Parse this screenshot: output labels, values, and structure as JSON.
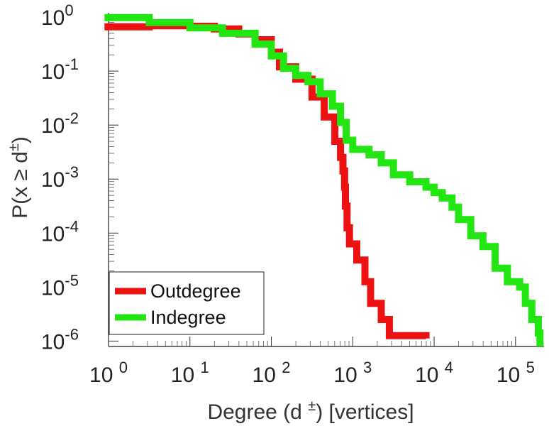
{
  "chart_data": {
    "type": "line",
    "xscale": "log",
    "yscale": "log",
    "xlim_exp": [
      0,
      5.35
    ],
    "ylim_exp": [
      -6.1,
      0.08
    ],
    "xlabel_parts": [
      "Degree (d ",
      "±",
      ") [vertices]"
    ],
    "ylabel_parts": [
      "P(x ",
      "≥",
      " d",
      "±",
      ")"
    ],
    "x_ticks": [
      {
        "base": "10",
        "exp": "0",
        "value_exp": 0
      },
      {
        "base": "10",
        "exp": "1",
        "value_exp": 1
      },
      {
        "base": "10",
        "exp": "2",
        "value_exp": 2
      },
      {
        "base": "10",
        "exp": "3",
        "value_exp": 3
      },
      {
        "base": "10",
        "exp": "4",
        "value_exp": 4
      },
      {
        "base": "10",
        "exp": "5",
        "value_exp": 5
      }
    ],
    "y_ticks": [
      {
        "base": "10",
        "exp": "0",
        "value_exp": 0
      },
      {
        "base": "10",
        "exp": "-1",
        "value_exp": -1
      },
      {
        "base": "10",
        "exp": "-2",
        "value_exp": -2
      },
      {
        "base": "10",
        "exp": "-3",
        "value_exp": -3
      },
      {
        "base": "10",
        "exp": "-4",
        "value_exp": -4
      },
      {
        "base": "10",
        "exp": "-5",
        "value_exp": -5
      },
      {
        "base": "10",
        "exp": "-6",
        "value_exp": -6
      }
    ],
    "series": [
      {
        "name": "Outdegree",
        "color": "#ee1111",
        "points_log10": [
          [
            -0.05,
            -0.18
          ],
          [
            0.5,
            -0.16
          ],
          [
            1.0,
            -0.17
          ],
          [
            1.3,
            -0.22
          ],
          [
            1.6,
            -0.31
          ],
          [
            1.8,
            -0.42
          ],
          [
            2.0,
            -0.65
          ],
          [
            2.1,
            -0.92
          ],
          [
            2.3,
            -1.15
          ],
          [
            2.5,
            -1.48
          ],
          [
            2.65,
            -1.85
          ],
          [
            2.78,
            -2.3
          ],
          [
            2.85,
            -2.6
          ],
          [
            2.88,
            -2.85
          ],
          [
            2.9,
            -3.15
          ],
          [
            2.91,
            -3.5
          ],
          [
            2.93,
            -3.9
          ],
          [
            2.96,
            -4.2
          ],
          [
            3.05,
            -4.5
          ],
          [
            3.15,
            -4.9
          ],
          [
            3.22,
            -5.3
          ],
          [
            3.35,
            -5.6
          ],
          [
            3.45,
            -5.9
          ],
          [
            3.9,
            -5.95
          ]
        ]
      },
      {
        "name": "Indegree",
        "color": "#22e611",
        "points_log10": [
          [
            -0.05,
            -0.01
          ],
          [
            0.5,
            -0.1
          ],
          [
            1.0,
            -0.2
          ],
          [
            1.4,
            -0.3
          ],
          [
            1.8,
            -0.5
          ],
          [
            2.0,
            -0.72
          ],
          [
            2.15,
            -0.95
          ],
          [
            2.3,
            -1.08
          ],
          [
            2.45,
            -1.2
          ],
          [
            2.6,
            -1.42
          ],
          [
            2.75,
            -1.65
          ],
          [
            2.85,
            -1.95
          ],
          [
            2.92,
            -2.28
          ],
          [
            3.0,
            -2.45
          ],
          [
            3.2,
            -2.55
          ],
          [
            3.35,
            -2.7
          ],
          [
            3.5,
            -2.92
          ],
          [
            3.7,
            -3.05
          ],
          [
            3.9,
            -3.15
          ],
          [
            4.0,
            -3.25
          ],
          [
            4.1,
            -3.35
          ],
          [
            4.22,
            -3.52
          ],
          [
            4.3,
            -3.75
          ],
          [
            4.45,
            -4.05
          ],
          [
            4.6,
            -4.25
          ],
          [
            4.75,
            -4.65
          ],
          [
            4.9,
            -4.9
          ],
          [
            5.05,
            -5.0
          ],
          [
            5.12,
            -5.3
          ],
          [
            5.2,
            -5.6
          ],
          [
            5.28,
            -5.85
          ],
          [
            5.3,
            -6.1
          ]
        ]
      }
    ],
    "legend": {
      "placement": "bottom-left",
      "entries": [
        {
          "label": "Outdegree",
          "color": "#ee1111"
        },
        {
          "label": "Indegree",
          "color": "#22e611"
        }
      ]
    }
  }
}
